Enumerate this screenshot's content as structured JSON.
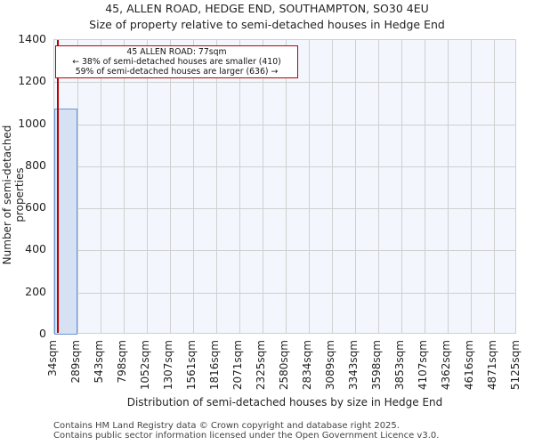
{
  "title": "45, ALLEN ROAD, HEDGE END, SOUTHAMPTON, SO30 4EU",
  "subtitle": "Size of property relative to semi-detached houses in Hedge End",
  "annotation": {
    "line1": "45 ALLEN ROAD: 77sqm",
    "line2": "← 38% of semi-detached houses are smaller (410)",
    "line3": "59% of semi-detached houses are larger (636) →"
  },
  "yaxis": {
    "label": "Number of semi-detached properties",
    "ticks": [
      "0",
      "200",
      "400",
      "600",
      "800",
      "1000",
      "1200",
      "1400"
    ]
  },
  "xaxis": {
    "label": "Distribution of semi-detached houses by size in Hedge End",
    "ticks": [
      "34sqm",
      "289sqm",
      "543sqm",
      "798sqm",
      "1052sqm",
      "1307sqm",
      "1561sqm",
      "1816sqm",
      "2071sqm",
      "2325sqm",
      "2580sqm",
      "2834sqm",
      "3089sqm",
      "3343sqm",
      "3598sqm",
      "3853sqm",
      "4107sqm",
      "4362sqm",
      "4616sqm",
      "4871sqm",
      "5125sqm"
    ]
  },
  "footer": {
    "line1": "Contains HM Land Registry data © Crown copyright and database right 2025.",
    "line2": "Contains public sector information licensed under the Open Government Licence v3.0."
  },
  "colors": {
    "bar_fill": "#d6e1f4",
    "bar_edge": "#6a95cf",
    "marker": "#c00000",
    "plot_bg": "#f3f6fd"
  },
  "chart_data": {
    "type": "bar",
    "title": "45, ALLEN ROAD, HEDGE END, SOUTHAMPTON, SO30 4EU",
    "subtitle": "Size of property relative to semi-detached houses in Hedge End",
    "xlabel": "Distribution of semi-detached houses by size in Hedge End",
    "ylabel": "Number of semi-detached properties",
    "categories": [
      "34-289sqm",
      "289-543sqm",
      "543-798sqm",
      "798-1052sqm",
      "1052-1307sqm",
      "1307-1561sqm",
      "1561-1816sqm",
      "1816-2071sqm",
      "2071-2325sqm",
      "2325-2580sqm",
      "2580-2834sqm",
      "2834-3089sqm",
      "3089-3343sqm",
      "3343-3598sqm",
      "3598-3853sqm",
      "3853-4107sqm",
      "4107-4362sqm",
      "4362-4616sqm",
      "4616-4871sqm",
      "4871-5125sqm"
    ],
    "values": [
      1075,
      0,
      0,
      0,
      0,
      0,
      0,
      0,
      0,
      0,
      0,
      0,
      0,
      0,
      0,
      0,
      0,
      0,
      0,
      0
    ],
    "ylim": [
      0,
      1400
    ],
    "grid": true,
    "marker": {
      "x": 77,
      "label": "45 ALLEN ROAD: 77sqm",
      "smaller_pct": 38,
      "smaller_count": 410,
      "larger_pct": 59,
      "larger_count": 636
    }
  }
}
